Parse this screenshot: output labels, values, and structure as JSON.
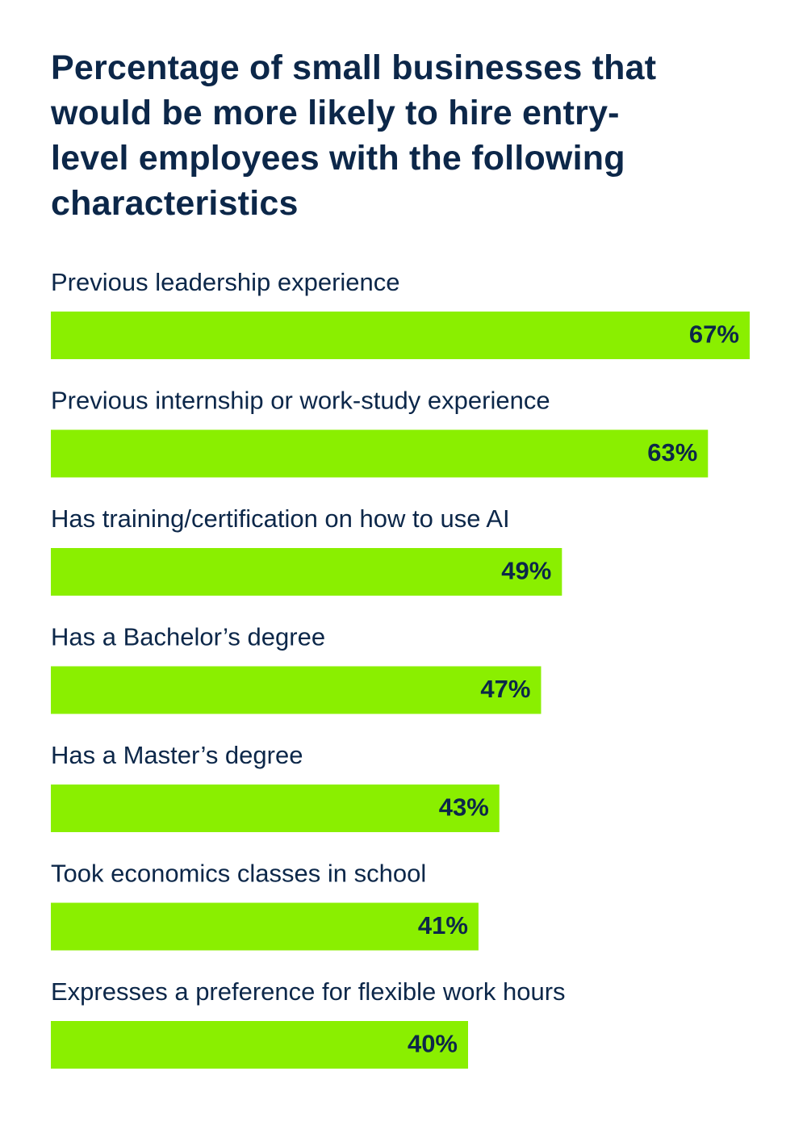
{
  "chart_data": {
    "type": "bar",
    "orientation": "horizontal",
    "title": "Percentage of small businesses that would be more likely to hire entry-level employees with the following characteristics",
    "categories": [
      "Previous leadership experience",
      "Previous internship or work-study experience",
      "Has training/certification on how to use AI",
      "Has a Bachelor’s degree",
      "Has a Master’s degree",
      "Took economics classes in school",
      "Expresses a preference for flexible work hours"
    ],
    "values": [
      67,
      63,
      49,
      47,
      43,
      41,
      40
    ],
    "value_labels": [
      "67%",
      "63%",
      "49%",
      "47%",
      "43%",
      "41%",
      "40%"
    ],
    "color": "#8aef00"
  }
}
